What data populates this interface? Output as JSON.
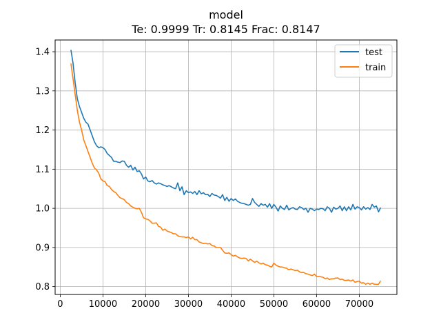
{
  "chart_data": {
    "type": "line",
    "title": "model",
    "subtitle": "Te: 0.9999 Tr: 0.8145 Frac: 0.8147",
    "xlabel": "",
    "ylabel": "",
    "xlim": [
      -1200,
      78800
    ],
    "ylim": [
      0.78,
      1.43
    ],
    "grid": true,
    "legend": "top-right",
    "x_ticks": [
      0,
      10000,
      20000,
      30000,
      40000,
      50000,
      60000,
      70000
    ],
    "x_tick_labels": [
      "0",
      "10000",
      "20000",
      "30000",
      "40000",
      "50000",
      "60000",
      "70000"
    ],
    "y_ticks": [
      0.8,
      0.9,
      1.0,
      1.1,
      1.2,
      1.3,
      1.4
    ],
    "y_tick_labels": [
      "0.8",
      "0.9",
      "1.0",
      "1.1",
      "1.2",
      "1.3",
      "1.4"
    ],
    "series": [
      {
        "name": "test",
        "color": "#1f77b4",
        "points": [
          [
            2500,
            1.405
          ],
          [
            3000,
            1.37
          ],
          [
            3500,
            1.32
          ],
          [
            4000,
            1.28
          ],
          [
            4500,
            1.26
          ],
          [
            5000,
            1.245
          ],
          [
            5500,
            1.23
          ],
          [
            6000,
            1.22
          ],
          [
            6500,
            1.215
          ],
          [
            7000,
            1.2
          ],
          [
            7500,
            1.185
          ],
          [
            8000,
            1.17
          ],
          [
            8500,
            1.16
          ],
          [
            9000,
            1.155
          ],
          [
            9500,
            1.157
          ],
          [
            10000,
            1.155
          ],
          [
            10500,
            1.15
          ],
          [
            11000,
            1.14
          ],
          [
            11500,
            1.135
          ],
          [
            12000,
            1.13
          ],
          [
            12500,
            1.12
          ],
          [
            13000,
            1.12
          ],
          [
            13500,
            1.118
          ],
          [
            14000,
            1.117
          ],
          [
            14500,
            1.121
          ],
          [
            15000,
            1.12
          ],
          [
            15500,
            1.11
          ],
          [
            16000,
            1.105
          ],
          [
            16500,
            1.11
          ],
          [
            17000,
            1.098
          ],
          [
            17500,
            1.105
          ],
          [
            18000,
            1.094
          ],
          [
            18500,
            1.096
          ],
          [
            19000,
            1.088
          ],
          [
            19500,
            1.075
          ],
          [
            20000,
            1.08
          ],
          [
            20500,
            1.07
          ],
          [
            21000,
            1.068
          ],
          [
            21500,
            1.071
          ],
          [
            22000,
            1.065
          ],
          [
            22500,
            1.062
          ],
          [
            23000,
            1.065
          ],
          [
            23500,
            1.063
          ],
          [
            24000,
            1.06
          ],
          [
            24500,
            1.058
          ],
          [
            25000,
            1.056
          ],
          [
            25500,
            1.058
          ],
          [
            26000,
            1.055
          ],
          [
            26500,
            1.052
          ],
          [
            27000,
            1.05
          ],
          [
            27500,
            1.065
          ],
          [
            28000,
            1.045
          ],
          [
            28500,
            1.055
          ],
          [
            29000,
            1.035
          ],
          [
            29500,
            1.045
          ],
          [
            30000,
            1.04
          ],
          [
            30500,
            1.042
          ],
          [
            31000,
            1.038
          ],
          [
            31500,
            1.043
          ],
          [
            32000,
            1.035
          ],
          [
            32500,
            1.045
          ],
          [
            33000,
            1.037
          ],
          [
            33500,
            1.04
          ],
          [
            34000,
            1.035
          ],
          [
            34500,
            1.036
          ],
          [
            35000,
            1.03
          ],
          [
            35500,
            1.038
          ],
          [
            36000,
            1.034
          ],
          [
            36500,
            1.033
          ],
          [
            37000,
            1.03
          ],
          [
            37500,
            1.026
          ],
          [
            38000,
            1.035
          ],
          [
            38500,
            1.02
          ],
          [
            39000,
            1.028
          ],
          [
            39500,
            1.018
          ],
          [
            40000,
            1.025
          ],
          [
            40500,
            1.02
          ],
          [
            41000,
            1.024
          ],
          [
            41500,
            1.018
          ],
          [
            42000,
            1.015
          ],
          [
            42500,
            1.013
          ],
          [
            43000,
            1.012
          ],
          [
            43500,
            1.01
          ],
          [
            44000,
            1.008
          ],
          [
            44500,
            1.01
          ],
          [
            45000,
            1.025
          ],
          [
            45500,
            1.015
          ],
          [
            46000,
            1.01
          ],
          [
            46500,
            1.005
          ],
          [
            47000,
            1.012
          ],
          [
            47500,
            1.008
          ],
          [
            48000,
            1.01
          ],
          [
            48500,
            1.003
          ],
          [
            49000,
            1.012
          ],
          [
            49500,
            1.0
          ],
          [
            50000,
            1.01
          ],
          [
            50500,
            1.003
          ],
          [
            51000,
            0.993
          ],
          [
            51500,
            1.006
          ],
          [
            52000,
            1.0
          ],
          [
            52500,
            0.997
          ],
          [
            53000,
            1.008
          ],
          [
            53500,
            0.996
          ],
          [
            54000,
            1.0
          ],
          [
            54500,
            1.002
          ],
          [
            55000,
            0.998
          ],
          [
            55500,
            0.997
          ],
          [
            56000,
            1.004
          ],
          [
            56500,
            1.002
          ],
          [
            57000,
            0.997
          ],
          [
            57500,
            1.0
          ],
          [
            58000,
            0.99
          ],
          [
            58500,
            1.0
          ],
          [
            59000,
            0.998
          ],
          [
            59500,
            0.994
          ],
          [
            60000,
            0.998
          ],
          [
            60500,
            0.997
          ],
          [
            61000,
            1.0
          ],
          [
            61500,
            0.999
          ],
          [
            62000,
            0.994
          ],
          [
            62500,
            1.004
          ],
          [
            63000,
            1.0
          ],
          [
            63500,
            0.99
          ],
          [
            64000,
            1.003
          ],
          [
            64500,
            0.998
          ],
          [
            65000,
            1.0
          ],
          [
            65500,
            1.006
          ],
          [
            66000,
            0.994
          ],
          [
            66500,
            1.004
          ],
          [
            67000,
            0.994
          ],
          [
            67500,
            1.004
          ],
          [
            68000,
            0.996
          ],
          [
            68500,
            1.01
          ],
          [
            69000,
            0.998
          ],
          [
            69500,
            1.004
          ],
          [
            70000,
            1.002
          ],
          [
            70500,
            0.996
          ],
          [
            71000,
            1.004
          ],
          [
            71500,
            0.998
          ],
          [
            72000,
            1.002
          ],
          [
            72500,
            0.997
          ],
          [
            73000,
            1.01
          ],
          [
            73500,
            1.003
          ],
          [
            74000,
            1.006
          ],
          [
            74500,
            0.991
          ],
          [
            75000,
            1.002
          ]
        ]
      },
      {
        "name": "train",
        "color": "#ff7f0e",
        "points": [
          [
            2500,
            1.37
          ],
          [
            3000,
            1.33
          ],
          [
            3500,
            1.29
          ],
          [
            4000,
            1.25
          ],
          [
            4500,
            1.22
          ],
          [
            5000,
            1.2
          ],
          [
            5500,
            1.175
          ],
          [
            6000,
            1.16
          ],
          [
            6500,
            1.145
          ],
          [
            7000,
            1.13
          ],
          [
            7500,
            1.115
          ],
          [
            8000,
            1.103
          ],
          [
            8500,
            1.098
          ],
          [
            9000,
            1.09
          ],
          [
            9500,
            1.075
          ],
          [
            10000,
            1.07
          ],
          [
            10500,
            1.068
          ],
          [
            11000,
            1.058
          ],
          [
            11500,
            1.056
          ],
          [
            12000,
            1.048
          ],
          [
            12500,
            1.043
          ],
          [
            13000,
            1.04
          ],
          [
            13500,
            1.033
          ],
          [
            14000,
            1.027
          ],
          [
            14500,
            1.025
          ],
          [
            15000,
            1.022
          ],
          [
            15500,
            1.015
          ],
          [
            16000,
            1.012
          ],
          [
            16500,
            1.006
          ],
          [
            17000,
            1.003
          ],
          [
            17500,
            1.0
          ],
          [
            18000,
            0.999
          ],
          [
            18500,
            1.0
          ],
          [
            19000,
            0.99
          ],
          [
            19500,
            0.976
          ],
          [
            20000,
            0.973
          ],
          [
            20500,
            0.972
          ],
          [
            21000,
            0.968
          ],
          [
            21500,
            0.962
          ],
          [
            22000,
            0.962
          ],
          [
            22500,
            0.963
          ],
          [
            23000,
            0.954
          ],
          [
            23500,
            0.952
          ],
          [
            24000,
            0.944
          ],
          [
            24500,
            0.947
          ],
          [
            25000,
            0.942
          ],
          [
            25500,
            0.94
          ],
          [
            26000,
            0.938
          ],
          [
            26500,
            0.935
          ],
          [
            27000,
            0.935
          ],
          [
            27500,
            0.93
          ],
          [
            28000,
            0.928
          ],
          [
            28500,
            0.927
          ],
          [
            29000,
            0.927
          ],
          [
            29500,
            0.925
          ],
          [
            30000,
            0.927
          ],
          [
            30500,
            0.922
          ],
          [
            31000,
            0.926
          ],
          [
            31500,
            0.92
          ],
          [
            32000,
            0.92
          ],
          [
            32500,
            0.914
          ],
          [
            33000,
            0.912
          ],
          [
            33500,
            0.91
          ],
          [
            34000,
            0.911
          ],
          [
            34500,
            0.909
          ],
          [
            35000,
            0.91
          ],
          [
            35500,
            0.905
          ],
          [
            36000,
            0.904
          ],
          [
            36500,
            0.9
          ],
          [
            37000,
            0.9
          ],
          [
            37500,
            0.9
          ],
          [
            38000,
            0.893
          ],
          [
            38500,
            0.886
          ],
          [
            39000,
            0.885
          ],
          [
            39500,
            0.886
          ],
          [
            40000,
            0.882
          ],
          [
            40500,
            0.878
          ],
          [
            41000,
            0.88
          ],
          [
            41500,
            0.876
          ],
          [
            42000,
            0.873
          ],
          [
            42500,
            0.872
          ],
          [
            43000,
            0.873
          ],
          [
            43500,
            0.872
          ],
          [
            44000,
            0.866
          ],
          [
            44500,
            0.87
          ],
          [
            45000,
            0.866
          ],
          [
            45500,
            0.862
          ],
          [
            46000,
            0.865
          ],
          [
            46500,
            0.861
          ],
          [
            47000,
            0.858
          ],
          [
            47500,
            0.86
          ],
          [
            48000,
            0.856
          ],
          [
            48500,
            0.855
          ],
          [
            49000,
            0.852
          ],
          [
            49500,
            0.85
          ],
          [
            50000,
            0.86
          ],
          [
            50500,
            0.855
          ],
          [
            51000,
            0.852
          ],
          [
            51500,
            0.85
          ],
          [
            52000,
            0.85
          ],
          [
            52500,
            0.848
          ],
          [
            53000,
            0.847
          ],
          [
            53500,
            0.843
          ],
          [
            54000,
            0.845
          ],
          [
            54500,
            0.843
          ],
          [
            55000,
            0.841
          ],
          [
            55500,
            0.842
          ],
          [
            56000,
            0.838
          ],
          [
            56500,
            0.836
          ],
          [
            57000,
            0.836
          ],
          [
            57500,
            0.833
          ],
          [
            58000,
            0.832
          ],
          [
            58500,
            0.83
          ],
          [
            59000,
            0.828
          ],
          [
            59500,
            0.832
          ],
          [
            60000,
            0.826
          ],
          [
            60500,
            0.826
          ],
          [
            61000,
            0.825
          ],
          [
            61500,
            0.824
          ],
          [
            62000,
            0.82
          ],
          [
            62500,
            0.822
          ],
          [
            63000,
            0.818
          ],
          [
            63500,
            0.82
          ],
          [
            64000,
            0.82
          ],
          [
            64500,
            0.822
          ],
          [
            65000,
            0.822
          ],
          [
            65500,
            0.818
          ],
          [
            66000,
            0.819
          ],
          [
            66500,
            0.816
          ],
          [
            67000,
            0.816
          ],
          [
            67500,
            0.817
          ],
          [
            68000,
            0.814
          ],
          [
            68500,
            0.817
          ],
          [
            69000,
            0.811
          ],
          [
            69500,
            0.813
          ],
          [
            70000,
            0.814
          ],
          [
            70500,
            0.809
          ],
          [
            71000,
            0.81
          ],
          [
            71500,
            0.806
          ],
          [
            72000,
            0.809
          ],
          [
            72500,
            0.806
          ],
          [
            73000,
            0.809
          ],
          [
            73500,
            0.806
          ],
          [
            74000,
            0.806
          ],
          [
            74500,
            0.806
          ],
          [
            75000,
            0.815
          ]
        ]
      }
    ]
  }
}
